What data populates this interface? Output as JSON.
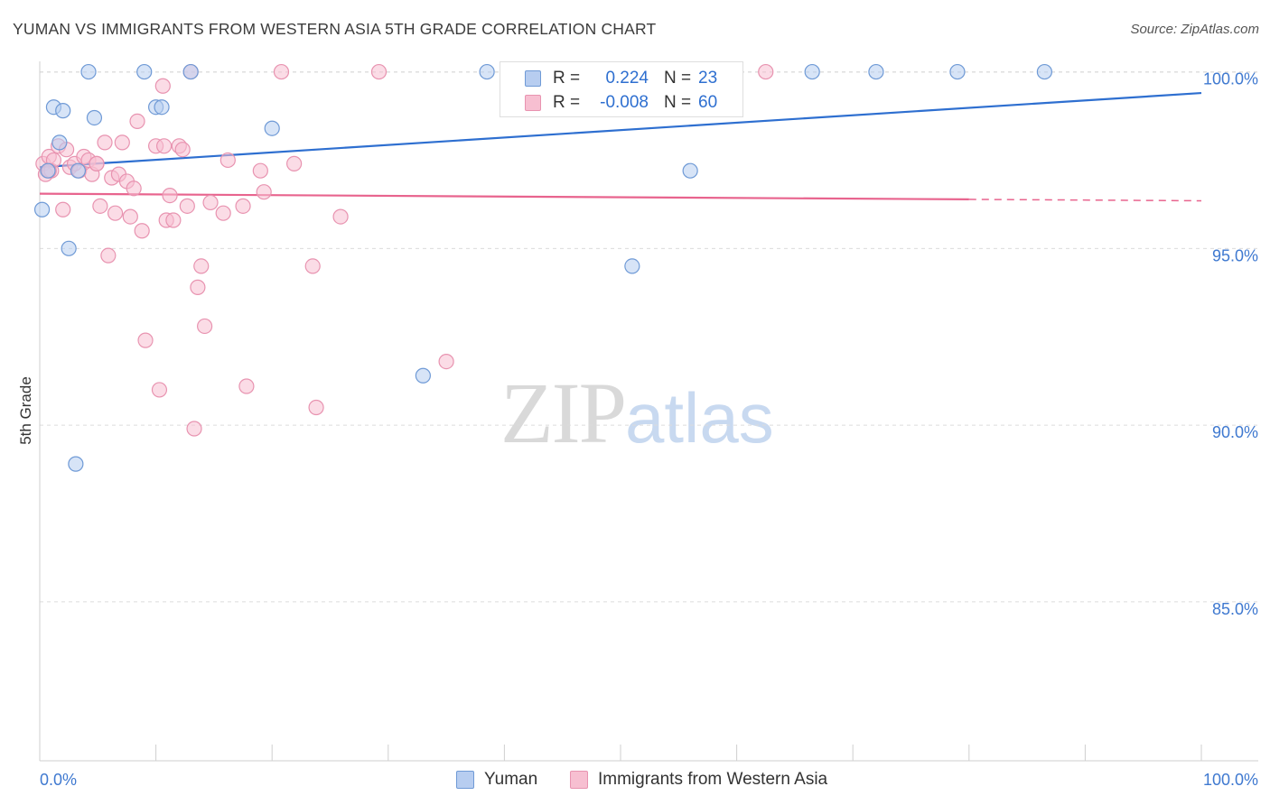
{
  "header": {
    "title": "YUMAN VS IMMIGRANTS FROM WESTERN ASIA 5TH GRADE CORRELATION CHART",
    "source": "Source: ZipAtlas.com"
  },
  "watermark": {
    "zip": "ZIP",
    "atlas": "atlas"
  },
  "legend_top": {
    "rows": [
      {
        "r_label": "R =",
        "r_value": "0.224",
        "n_label": "N =",
        "n_value": "23"
      },
      {
        "r_label": "R =",
        "r_value": "-0.008",
        "n_label": "N =",
        "n_value": "60"
      }
    ]
  },
  "legend_bottom": {
    "items": [
      "Yuman",
      "Immigrants from Western Asia"
    ]
  },
  "colors": {
    "yuman_fill": "#b7cdf0",
    "yuman_stroke": "#6f9ad6",
    "yuman_line": "#2e6fd0",
    "immig_fill": "#f7bfd1",
    "immig_stroke": "#e893b0",
    "immig_line": "#e8648e",
    "tick_label": "#3f79d0",
    "grid": "#dcdcdc"
  },
  "chart_data": {
    "type": "scatter",
    "title": "YUMAN VS IMMIGRANTS FROM WESTERN ASIA 5TH GRADE CORRELATION CHART",
    "xlabel": "",
    "ylabel": "5th Grade",
    "xlim": [
      0,
      100
    ],
    "ylim": [
      80.5,
      100.5
    ],
    "x_tick_labels": [
      "0.0%",
      "100.0%"
    ],
    "y_ticks": [
      85,
      90,
      95,
      100
    ],
    "y_tick_labels": [
      "85.0%",
      "90.0%",
      "95.0%",
      "100.0%"
    ],
    "grid": "horizontal dashed",
    "legend_placement": "bottom-center",
    "series": [
      {
        "name": "Yuman",
        "r": 0.224,
        "n": 23,
        "trend": {
          "x": [
            0,
            100
          ],
          "y": [
            97.3,
            99.4
          ],
          "dashed_from": null
        },
        "points": [
          [
            0.2,
            96.1
          ],
          [
            0.7,
            97.2
          ],
          [
            1.2,
            99.0
          ],
          [
            1.7,
            98.0
          ],
          [
            2.0,
            98.9
          ],
          [
            2.5,
            95.0
          ],
          [
            3.1,
            88.9
          ],
          [
            3.3,
            97.2
          ],
          [
            4.2,
            100.0
          ],
          [
            4.7,
            98.7
          ],
          [
            9.0,
            100.0
          ],
          [
            10.0,
            99.0
          ],
          [
            10.5,
            99.0
          ],
          [
            13.0,
            100.0
          ],
          [
            20.0,
            98.4
          ],
          [
            33.0,
            91.4
          ],
          [
            38.5,
            100.0
          ],
          [
            51.0,
            94.5
          ],
          [
            56.0,
            97.2
          ],
          [
            66.5,
            100.0
          ],
          [
            72.0,
            100.0
          ],
          [
            79.0,
            100.0
          ],
          [
            86.5,
            100.0
          ]
        ]
      },
      {
        "name": "Immigrants from Western Asia",
        "r": -0.008,
        "n": 60,
        "trend": {
          "x": [
            0,
            100
          ],
          "y": [
            96.55,
            96.35
          ],
          "dashed_from": 80
        },
        "points": [
          [
            0.3,
            97.4
          ],
          [
            0.5,
            97.1
          ],
          [
            0.8,
            97.6
          ],
          [
            1.0,
            97.2
          ],
          [
            1.2,
            97.5
          ],
          [
            1.6,
            97.9
          ],
          [
            2.0,
            96.1
          ],
          [
            2.3,
            97.8
          ],
          [
            2.6,
            97.3
          ],
          [
            3.0,
            97.4
          ],
          [
            3.4,
            97.2
          ],
          [
            3.8,
            97.6
          ],
          [
            4.2,
            97.5
          ],
          [
            4.5,
            97.1
          ],
          [
            4.9,
            97.4
          ],
          [
            5.2,
            96.2
          ],
          [
            5.6,
            98.0
          ],
          [
            5.9,
            94.8
          ],
          [
            6.2,
            97.0
          ],
          [
            6.5,
            96.0
          ],
          [
            6.8,
            97.1
          ],
          [
            7.1,
            98.0
          ],
          [
            7.5,
            96.9
          ],
          [
            7.8,
            95.9
          ],
          [
            8.1,
            96.7
          ],
          [
            8.4,
            98.6
          ],
          [
            8.8,
            95.5
          ],
          [
            9.1,
            92.4
          ],
          [
            10.0,
            97.9
          ],
          [
            10.3,
            91.0
          ],
          [
            10.6,
            99.6
          ],
          [
            10.9,
            95.8
          ],
          [
            11.2,
            96.5
          ],
          [
            11.5,
            95.8
          ],
          [
            12.0,
            97.9
          ],
          [
            12.3,
            97.8
          ],
          [
            12.7,
            96.2
          ],
          [
            13.0,
            100.0
          ],
          [
            13.3,
            89.9
          ],
          [
            13.6,
            93.9
          ],
          [
            13.9,
            94.5
          ],
          [
            14.2,
            92.8
          ],
          [
            14.7,
            96.3
          ],
          [
            15.8,
            96.0
          ],
          [
            16.2,
            97.5
          ],
          [
            17.5,
            96.2
          ],
          [
            17.8,
            91.1
          ],
          [
            19.0,
            97.2
          ],
          [
            19.3,
            96.6
          ],
          [
            20.8,
            100.0
          ],
          [
            21.9,
            97.4
          ],
          [
            23.5,
            94.5
          ],
          [
            23.8,
            90.5
          ],
          [
            25.9,
            95.9
          ],
          [
            29.2,
            100.0
          ],
          [
            35.0,
            91.8
          ],
          [
            4.9,
            97.4
          ],
          [
            0.8,
            97.2
          ],
          [
            10.7,
            97.9
          ],
          [
            62.5,
            100.0
          ]
        ]
      }
    ]
  }
}
